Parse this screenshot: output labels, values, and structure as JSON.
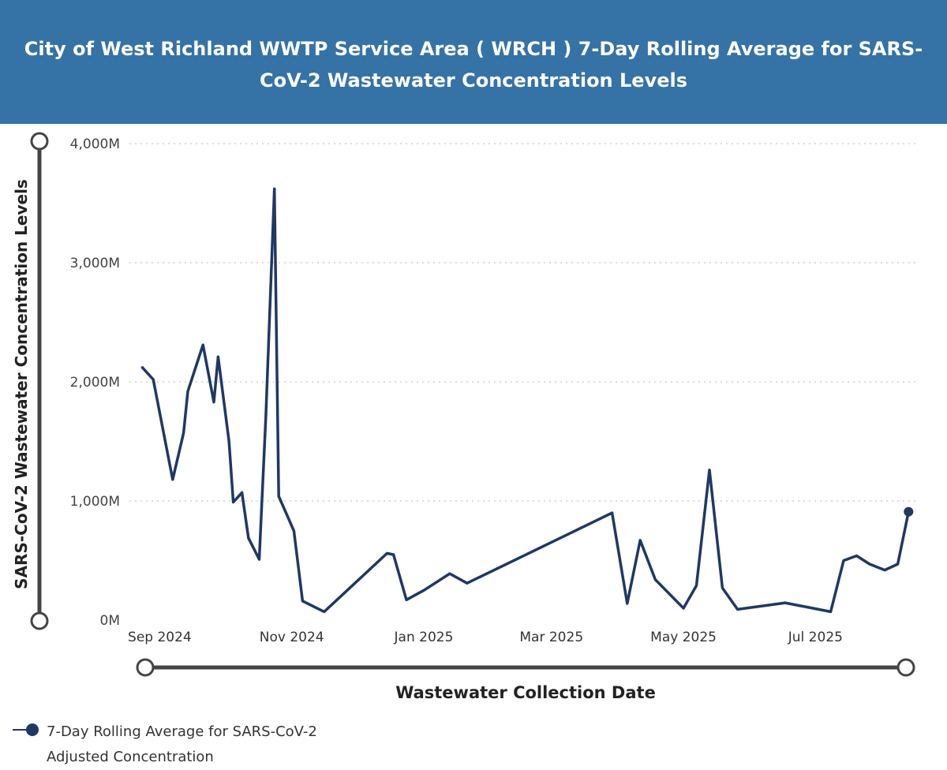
{
  "header": {
    "title": "City of West Richland WWTP Service Area ( WRCH ) 7-Day Rolling Average for SARS-CoV-2 Wastewater Concentration Levels"
  },
  "colors": {
    "header_bg": "#3572a6",
    "series_line": "#1f3864",
    "grid": "#c8c8c8",
    "slider": "#444444"
  },
  "chart_data": {
    "type": "line",
    "title": "City of West Richland WWTP Service Area ( WRCH ) 7-Day Rolling Average for SARS-CoV-2 Wastewater Concentration Levels",
    "xlabel": "Wastewater Collection Date",
    "ylabel": "SARS-CoV-2 Wastewater Concentration Levels",
    "ylim": [
      0,
      4000
    ],
    "y_unit": "M",
    "yticks": [
      "0M",
      "1,000M",
      "2,000M",
      "3,000M",
      "4,000M"
    ],
    "yticks_values": [
      0,
      1000,
      2000,
      3000,
      4000
    ],
    "x_range": [
      "2024-08-18",
      "2025-08-18"
    ],
    "xticks": [
      {
        "date": "2024-09-01",
        "label": "Sep 2024"
      },
      {
        "date": "2024-11-01",
        "label": "Nov 2024"
      },
      {
        "date": "2025-01-01",
        "label": "Jan 2025"
      },
      {
        "date": "2025-03-01",
        "label": "Mar 2025"
      },
      {
        "date": "2025-05-01",
        "label": "May 2025"
      },
      {
        "date": "2025-07-01",
        "label": "Jul 2025"
      }
    ],
    "grid": true,
    "legend_position": "bottom-left",
    "series": [
      {
        "name": "7-Day Rolling Average for SARS-CoV-2 Adjusted Concentration",
        "points": [
          [
            "2024-08-24",
            2120
          ],
          [
            "2024-08-29",
            2020
          ],
          [
            "2024-09-07",
            1180
          ],
          [
            "2024-09-12",
            1570
          ],
          [
            "2024-09-14",
            1920
          ],
          [
            "2024-09-21",
            2310
          ],
          [
            "2024-09-26",
            1830
          ],
          [
            "2024-09-28",
            2210
          ],
          [
            "2024-10-03",
            1500
          ],
          [
            "2024-10-05",
            990
          ],
          [
            "2024-10-09",
            1070
          ],
          [
            "2024-10-12",
            690
          ],
          [
            "2024-10-17",
            510
          ],
          [
            "2024-10-20",
            1700
          ],
          [
            "2024-10-24",
            3620
          ],
          [
            "2024-10-26",
            1040
          ],
          [
            "2024-11-02",
            750
          ],
          [
            "2024-11-06",
            160
          ],
          [
            "2024-11-16",
            70
          ],
          [
            "2024-12-15",
            560
          ],
          [
            "2024-12-18",
            550
          ],
          [
            "2024-12-24",
            170
          ],
          [
            "2025-01-01",
            250
          ],
          [
            "2025-01-13",
            390
          ],
          [
            "2025-01-21",
            310
          ],
          [
            "2025-03-29",
            900
          ],
          [
            "2025-04-05",
            140
          ],
          [
            "2025-04-11",
            670
          ],
          [
            "2025-04-18",
            340
          ],
          [
            "2025-05-01",
            100
          ],
          [
            "2025-05-07",
            290
          ],
          [
            "2025-05-13",
            1260
          ],
          [
            "2025-05-19",
            270
          ],
          [
            "2025-05-26",
            90
          ],
          [
            "2025-06-17",
            145
          ],
          [
            "2025-07-08",
            70
          ],
          [
            "2025-07-14",
            500
          ],
          [
            "2025-07-20",
            540
          ],
          [
            "2025-07-26",
            470
          ],
          [
            "2025-08-02",
            420
          ],
          [
            "2025-08-08",
            470
          ],
          [
            "2025-08-13",
            910
          ]
        ]
      }
    ]
  },
  "legend": {
    "label": "7-Day Rolling Average for SARS-CoV-2 Adjusted Concentration"
  }
}
